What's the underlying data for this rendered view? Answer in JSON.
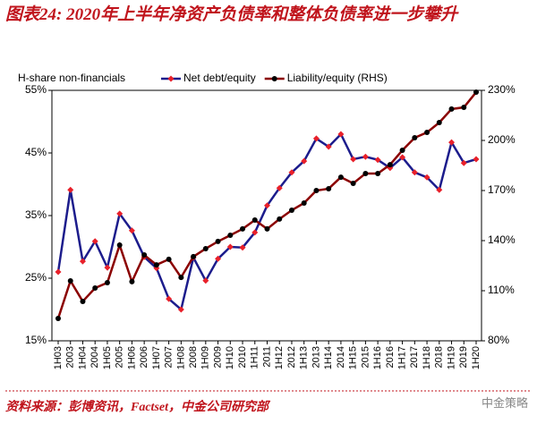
{
  "chart_data": {
    "type": "line",
    "title": "图表24: 2020年上半年净资产负债率和整体负债率进一步攀升",
    "y_label": "H-share non-financials",
    "source": "资料来源：彭博资讯，Factset，中金公司研究部",
    "watermark": "中金策略",
    "categories": [
      "1H03",
      "2003",
      "1H04",
      "2004",
      "1H05",
      "2005",
      "1H06",
      "2006",
      "1H07",
      "2007",
      "1H08",
      "2008",
      "1H09",
      "2009",
      "1H10",
      "2010",
      "1H11",
      "2011",
      "1H12",
      "2012",
      "1H13",
      "2013",
      "1H14",
      "2014",
      "1H15",
      "2015",
      "1H16",
      "2016",
      "1H17",
      "2017",
      "1H18",
      "2018",
      "1H19",
      "2019",
      "1H20"
    ],
    "series": [
      {
        "name": "Net debt/equity",
        "color": "#1c1c8c",
        "marker_color": "#e8202a",
        "values": [
          26.0,
          39.1,
          27.7,
          30.9,
          26.7,
          35.3,
          32.6,
          28.4,
          26.6,
          21.7,
          20.0,
          28.3,
          24.6,
          28.1,
          30.0,
          29.9,
          32.3,
          36.6,
          39.4,
          41.9,
          43.7,
          47.3,
          46.0,
          48.0,
          44.0,
          44.4,
          43.9,
          42.6,
          44.3,
          41.9,
          41.1,
          39.1,
          46.7,
          43.4,
          44.0
        ]
      },
      {
        "name": "Liability/equity (RHS)",
        "color": "#8b0000",
        "marker_color": "#000000",
        "axis": "y2",
        "values": [
          93.4,
          115.9,
          103.6,
          111.6,
          114.8,
          137.3,
          115.4,
          131.4,
          125.5,
          128.8,
          118.0,
          130.4,
          135.2,
          139.5,
          143.2,
          147.0,
          152.3,
          147.0,
          152.9,
          158.2,
          162.5,
          170.0,
          171.1,
          178.0,
          174.3,
          180.2,
          180.2,
          185.5,
          194.1,
          201.6,
          204.8,
          210.7,
          218.8,
          219.8,
          228.9
        ]
      }
    ],
    "ylim": [
      15,
      55
    ],
    "yticks": [
      {
        "value": 15,
        "label": "15%"
      },
      {
        "value": 25,
        "label": "25%"
      },
      {
        "value": 35,
        "label": "35%"
      },
      {
        "value": 45,
        "label": "45%"
      },
      {
        "value": 55,
        "label": "55%"
      }
    ],
    "y2lim": [
      80,
      230
    ],
    "y2ticks": [
      {
        "value": 80,
        "label": "80%"
      },
      {
        "value": 110,
        "label": "110%"
      },
      {
        "value": 140,
        "label": "140%"
      },
      {
        "value": 170,
        "label": "170%"
      },
      {
        "value": 200,
        "label": "200%"
      },
      {
        "value": 230,
        "label": "230%"
      }
    ],
    "legend": "top"
  }
}
